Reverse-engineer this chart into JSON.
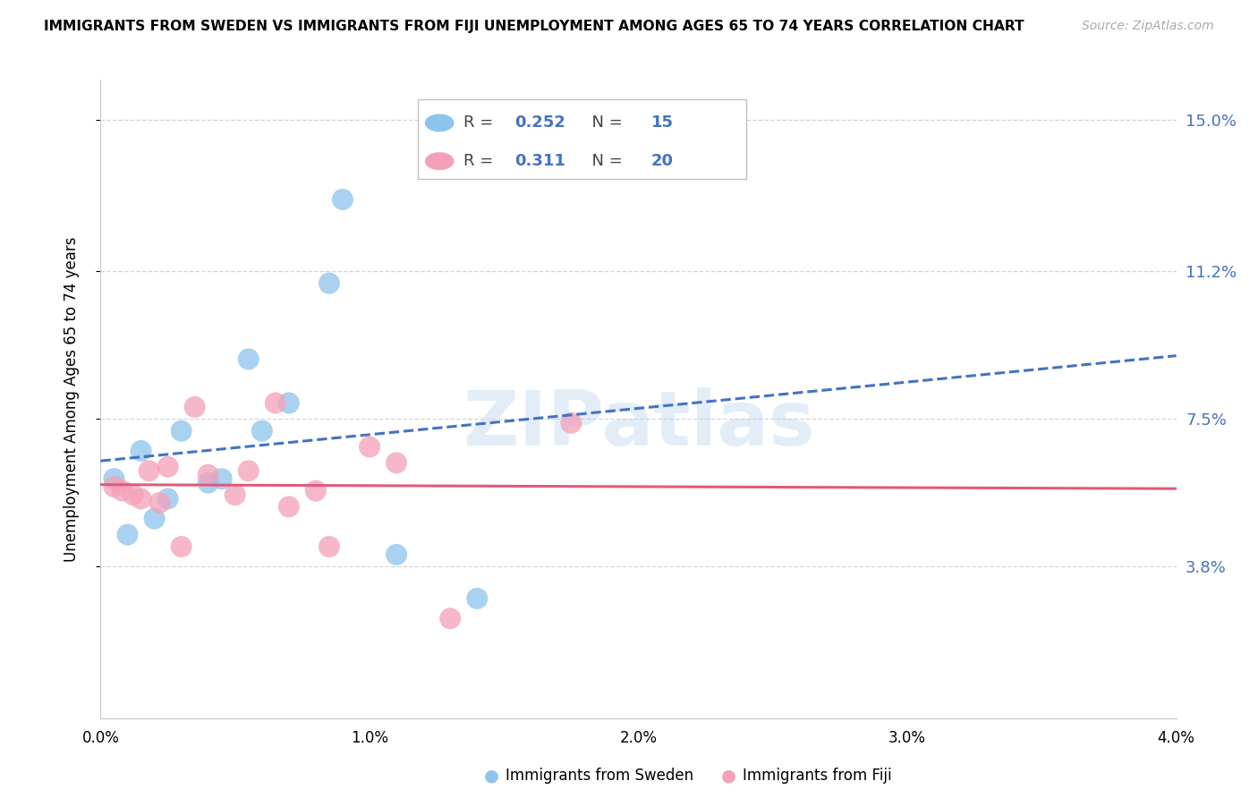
{
  "title": "IMMIGRANTS FROM SWEDEN VS IMMIGRANTS FROM FIJI UNEMPLOYMENT AMONG AGES 65 TO 74 YEARS CORRELATION CHART",
  "source": "Source: ZipAtlas.com",
  "ylabel": "Unemployment Among Ages 65 to 74 years",
  "xlabel_sweden": "Immigrants from Sweden",
  "xlabel_fiji": "Immigrants from Fiji",
  "xlim": [
    0.0,
    0.04
  ],
  "ylim": [
    0.0,
    0.16
  ],
  "right_yticks": [
    0.038,
    0.075,
    0.112,
    0.15
  ],
  "right_yticklabels": [
    "3.8%",
    "7.5%",
    "11.2%",
    "15.0%"
  ],
  "sweden_r": "0.252",
  "sweden_n": "15",
  "fiji_r": "0.311",
  "fiji_n": "20",
  "sweden_color": "#8DC4ED",
  "fiji_color": "#F4A0B8",
  "sweden_line_color": "#4472C4",
  "fiji_line_color": "#E05A7A",
  "watermark": "ZIPatlas",
  "sweden_x": [
    0.0005,
    0.001,
    0.0015,
    0.002,
    0.0025,
    0.003,
    0.004,
    0.0045,
    0.0055,
    0.006,
    0.007,
    0.0085,
    0.009,
    0.011,
    0.014
  ],
  "sweden_y": [
    0.06,
    0.046,
    0.067,
    0.05,
    0.055,
    0.072,
    0.059,
    0.06,
    0.09,
    0.072,
    0.079,
    0.109,
    0.13,
    0.041,
    0.03
  ],
  "fiji_x": [
    0.0005,
    0.0008,
    0.0012,
    0.0015,
    0.0018,
    0.0022,
    0.0025,
    0.003,
    0.0035,
    0.004,
    0.005,
    0.0055,
    0.0065,
    0.007,
    0.008,
    0.0085,
    0.01,
    0.011,
    0.013,
    0.0175
  ],
  "fiji_y": [
    0.058,
    0.057,
    0.056,
    0.055,
    0.062,
    0.054,
    0.063,
    0.043,
    0.078,
    0.061,
    0.056,
    0.062,
    0.079,
    0.053,
    0.057,
    0.043,
    0.068,
    0.064,
    0.025,
    0.074
  ]
}
